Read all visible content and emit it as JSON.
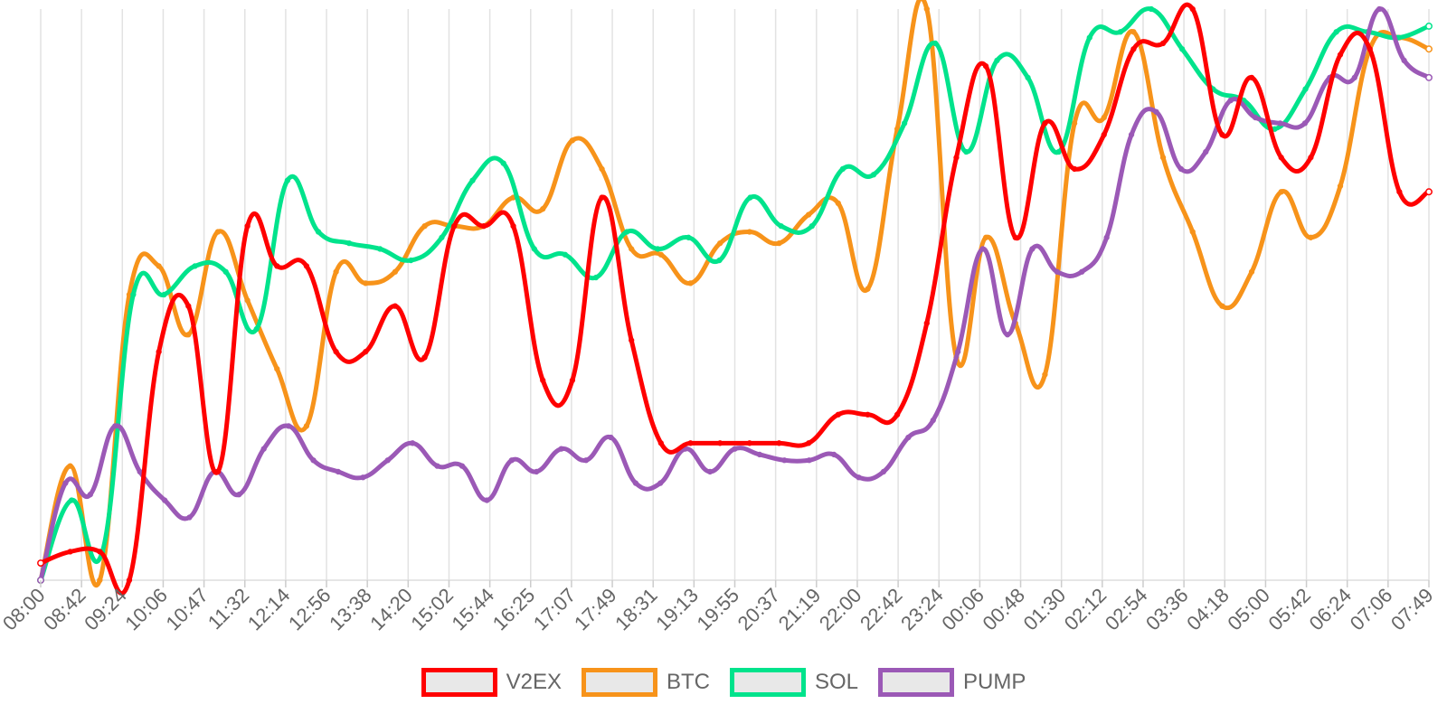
{
  "chart_data": {
    "type": "line",
    "title": "",
    "xlabel": "",
    "ylabel": "",
    "ylim": [
      0,
      100
    ],
    "grid": true,
    "legend_position": "bottom",
    "x_tick_labels": [
      "08:00",
      "08:42",
      "09:24",
      "10:06",
      "10:47",
      "11:32",
      "12:14",
      "12:56",
      "13:38",
      "14:20",
      "15:02",
      "15:44",
      "16:25",
      "17:07",
      "17:49",
      "18:31",
      "19:13",
      "19:55",
      "20:37",
      "21:19",
      "22:00",
      "22:42",
      "23:24",
      "00:06",
      "00:48",
      "01:30",
      "02:12",
      "02:54",
      "03:36",
      "04:18",
      "05:00",
      "05:42",
      "06:24",
      "07:06",
      "07:49"
    ],
    "series": [
      {
        "name": "V2EX",
        "color": "#ff0000",
        "values": [
          3,
          5,
          5,
          0,
          40,
          48,
          19,
          62,
          55,
          55,
          40,
          40,
          48,
          39,
          62,
          62,
          62,
          35,
          35,
          67,
          42,
          24,
          24,
          24,
          24,
          24,
          24,
          29,
          29,
          29,
          45,
          74,
          90,
          60,
          80,
          72,
          78,
          93,
          94,
          100,
          78,
          88,
          74,
          74,
          92,
          93,
          68,
          68
        ]
      },
      {
        "name": "BTC",
        "color": "#f7931a",
        "values": [
          0,
          20,
          0,
          50,
          55,
          43,
          61,
          49,
          37,
          27,
          54,
          52,
          54,
          62,
          62,
          62,
          67,
          65,
          77,
          72,
          58,
          57,
          52,
          59,
          61,
          59,
          64,
          66,
          51,
          79,
          100,
          39,
          60,
          45,
          36,
          80,
          81,
          96,
          74,
          61,
          48,
          54,
          68,
          60,
          69,
          93,
          95,
          93
        ]
      },
      {
        "name": "SOL",
        "color": "#00e38c",
        "values": [
          0,
          14,
          5,
          50,
          50,
          55,
          54,
          44,
          70,
          61,
          59,
          58,
          56,
          60,
          70,
          73,
          58,
          57,
          53,
          61,
          58,
          60,
          56,
          67,
          62,
          62,
          72,
          71,
          80,
          94,
          75,
          91,
          88,
          75,
          95,
          96,
          100,
          93,
          86,
          84,
          79,
          86,
          96,
          96,
          95,
          97
        ]
      },
      {
        "name": "PUMP",
        "color": "#9b59b6",
        "values": [
          0,
          17,
          15,
          27,
          19,
          14,
          11,
          19,
          15,
          23,
          27,
          21,
          19,
          18,
          21,
          24,
          20,
          20,
          14,
          21,
          19,
          23,
          21,
          25,
          17,
          17,
          23,
          19,
          23,
          22,
          21,
          21,
          22,
          18,
          19,
          25,
          28,
          40,
          58,
          43,
          58,
          54,
          54,
          60,
          78,
          82,
          72,
          75,
          84,
          81,
          80,
          80,
          88,
          88,
          100,
          91,
          88
        ]
      }
    ]
  },
  "legend": {
    "items": [
      {
        "label": "V2EX",
        "color": "#ff0000"
      },
      {
        "label": "BTC",
        "color": "#f7931a"
      },
      {
        "label": "SOL",
        "color": "#00e38c"
      },
      {
        "label": "PUMP",
        "color": "#9b59b6"
      }
    ]
  }
}
